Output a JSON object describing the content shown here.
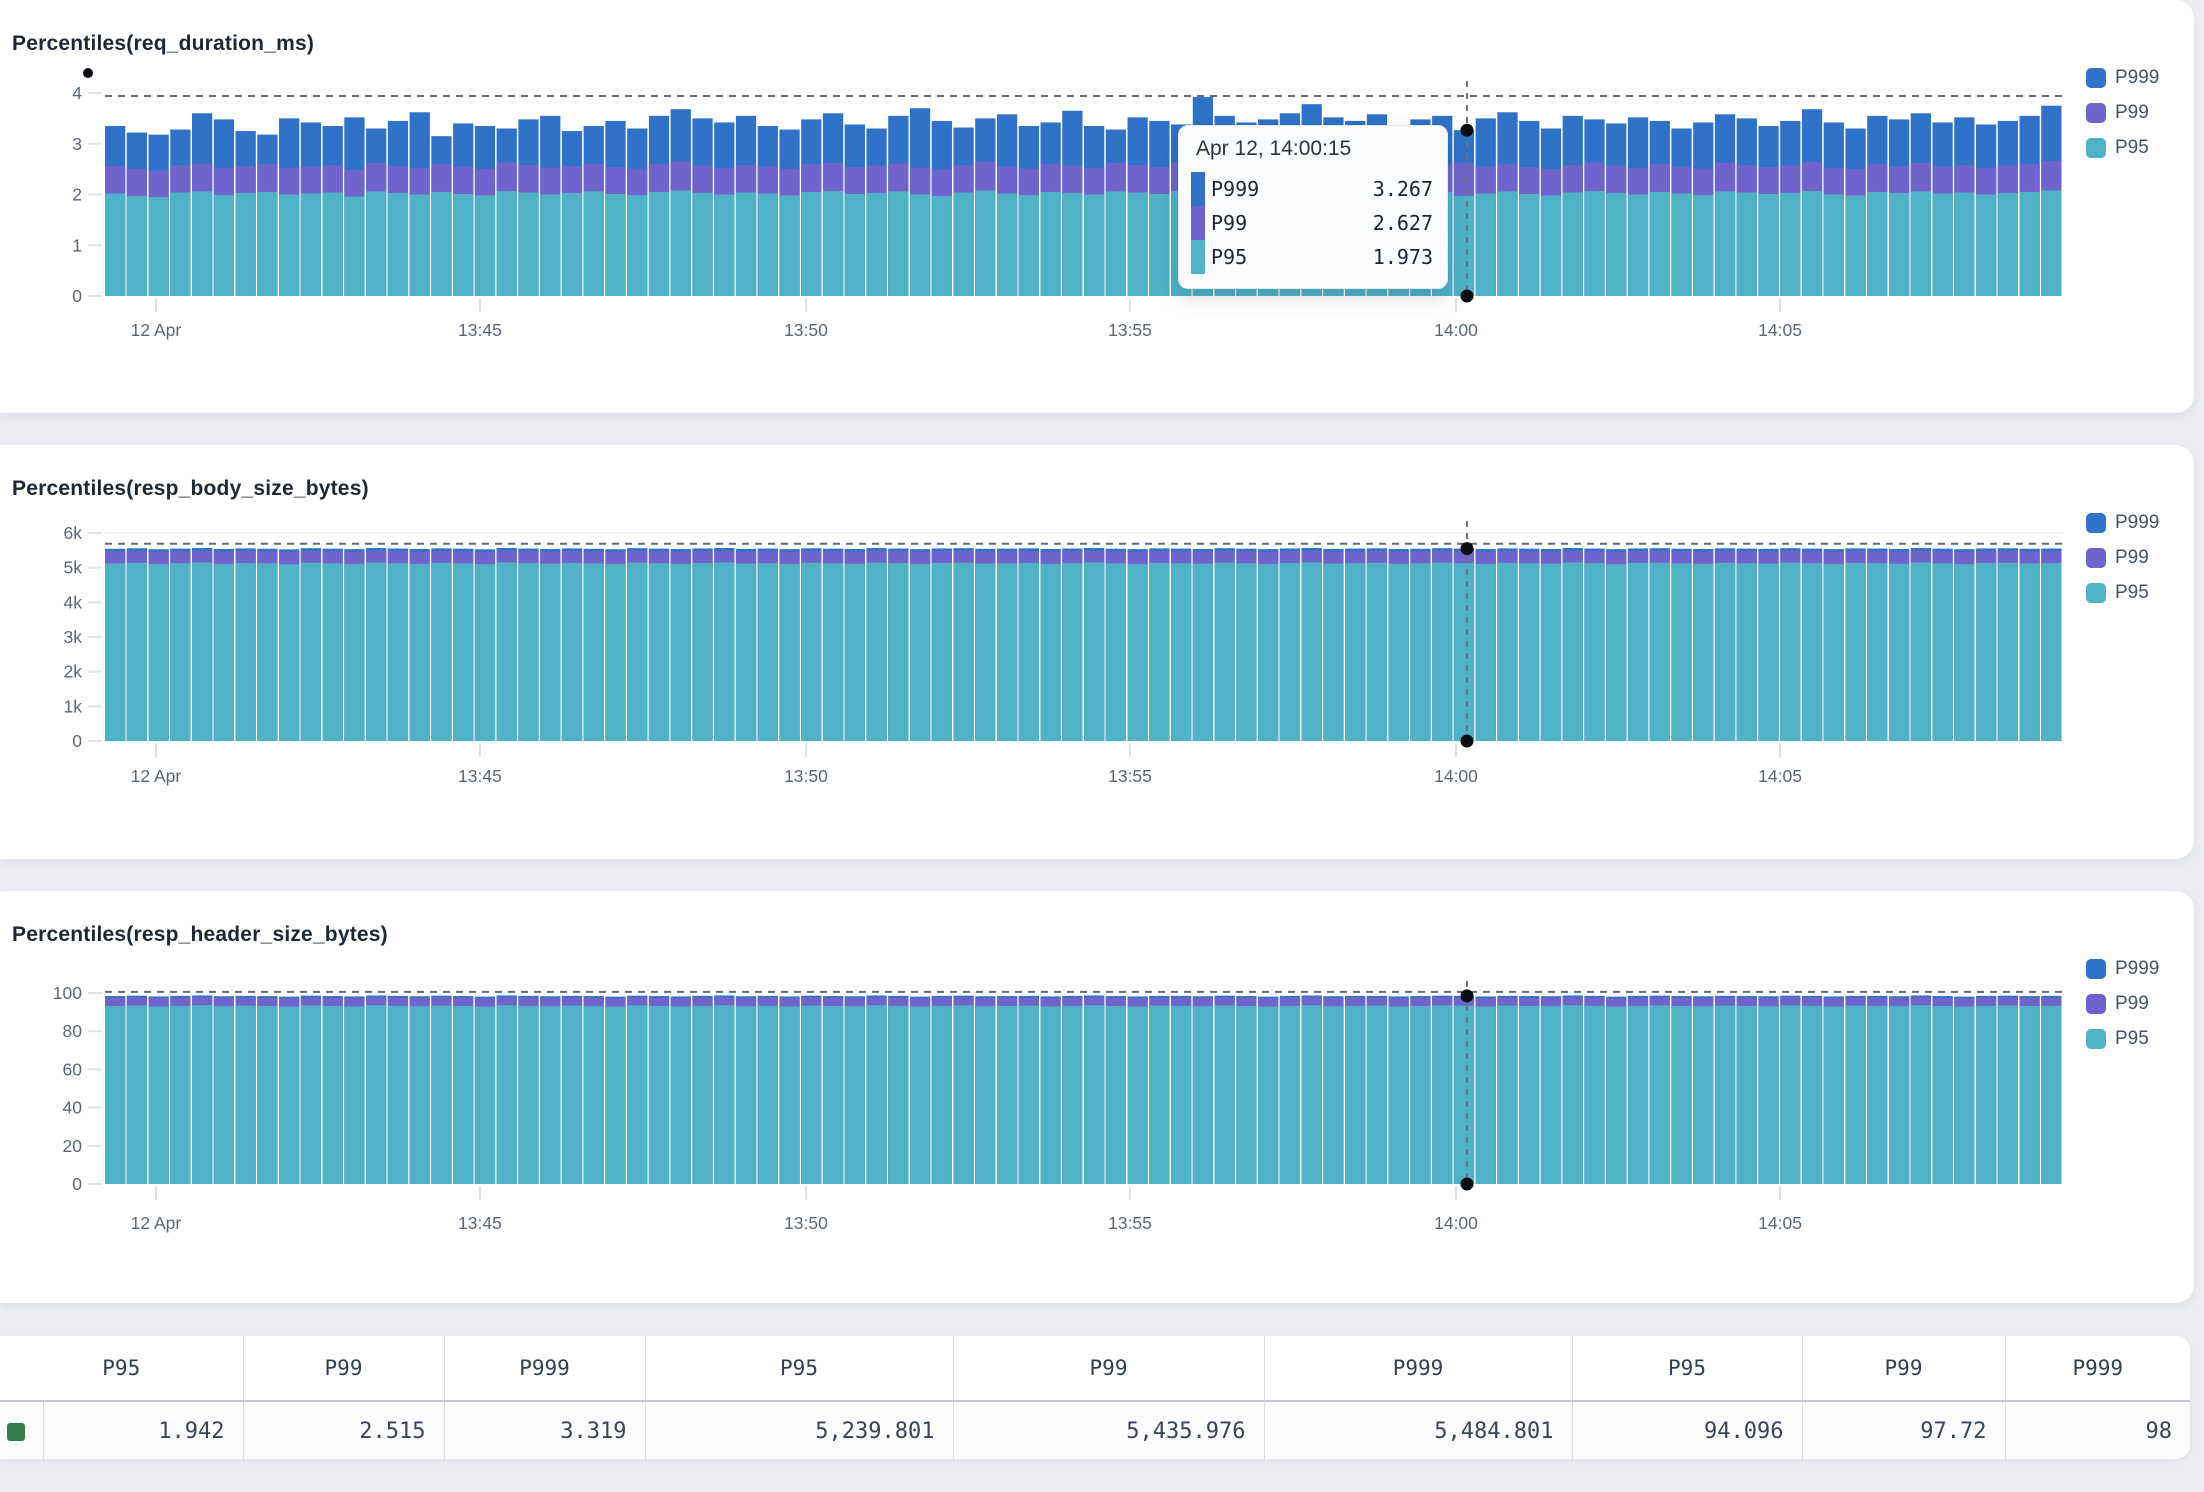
{
  "series_labels": [
    "P999",
    "P99",
    "P95"
  ],
  "colors": {
    "P999": "#2f72c7",
    "P99": "#7064cc",
    "P95": "#4fb2c6",
    "marker": "#0b0f15",
    "max_line": "#5c6b7e"
  },
  "tooltip": {
    "title": "Apr 12, 14:00:15",
    "rows": [
      {
        "label": "P999",
        "value": "3.267"
      },
      {
        "label": "P99",
        "value": "2.627"
      },
      {
        "label": "P95",
        "value": "1.973"
      }
    ]
  },
  "table": {
    "row_marker_color": "#377d4b",
    "columns": [
      {
        "header": "P95",
        "value": "1.942"
      },
      {
        "header": "P99",
        "value": "2.515"
      },
      {
        "header": "P999",
        "value": "3.319"
      },
      {
        "header": "P95",
        "value": "5,239.801"
      },
      {
        "header": "P99",
        "value": "5,435.976"
      },
      {
        "header": "P999",
        "value": "5,484.801"
      },
      {
        "header": "P95",
        "value": "94.096"
      },
      {
        "header": "P99",
        "value": "97.72"
      },
      {
        "header": "P999",
        "value": "98"
      }
    ]
  },
  "chart_data": [
    {
      "type": "bar",
      "title": "Percentiles(req_duration_ms)",
      "ylim": [
        0,
        4
      ],
      "y_ticks": [
        {
          "label": "0",
          "v": 0
        },
        {
          "label": "1",
          "v": 1
        },
        {
          "label": "2",
          "v": 2
        },
        {
          "label": "3",
          "v": 3
        },
        {
          "label": "4",
          "v": 4
        }
      ],
      "x_ticks": [
        {
          "label": "12 Apr",
          "pos": 0.026
        },
        {
          "label": "13:45",
          "pos": 0.1915
        },
        {
          "label": "13:50",
          "pos": 0.358
        },
        {
          "label": "13:55",
          "pos": 0.5235
        },
        {
          "label": "14:00",
          "pos": 0.69
        },
        {
          "label": "14:05",
          "pos": 0.8555
        }
      ],
      "max_line": 3.94,
      "top_gridline": false,
      "crosshair": {
        "pos": 0.6956,
        "bar_index": 62
      },
      "series": [
        {
          "name": "P95",
          "values": [
            2.02,
            1.97,
            1.95,
            2.04,
            2.06,
            1.99,
            2.03,
            2.05,
            2.0,
            2.02,
            2.04,
            1.96,
            2.06,
            2.03,
            2.0,
            2.05,
            2.01,
            1.98,
            2.07,
            2.04,
            2.0,
            2.03,
            2.06,
            2.01,
            1.99,
            2.05,
            2.08,
            2.03,
            2.0,
            2.04,
            2.02,
            1.98,
            2.05,
            2.07,
            2.01,
            2.03,
            2.06,
            2.0,
            1.97,
            2.04,
            2.08,
            2.02,
            1.99,
            2.05,
            2.03,
            2.0,
            2.06,
            2.04,
            2.01,
            2.07,
            2.1,
            2.03,
            2.0,
            2.05,
            2.08,
            2.02,
            1.99,
            2.04,
            2.06,
            2.0,
            2.03,
            2.05,
            1.973,
            2.02,
            2.06,
            2.01,
            1.98,
            2.04,
            2.07,
            2.03,
            2.0,
            2.05,
            2.02,
            1.99,
            2.06,
            2.04,
            2.01,
            2.03,
            2.07,
            2.0,
            1.98,
            2.05,
            2.03,
            2.06,
            2.02,
            2.04,
            2.0,
            2.03,
            2.05,
            2.08
          ]
        },
        {
          "name": "P99",
          "values": [
            2.56,
            2.5,
            2.47,
            2.58,
            2.61,
            2.52,
            2.56,
            2.6,
            2.53,
            2.55,
            2.58,
            2.49,
            2.62,
            2.56,
            2.52,
            2.6,
            2.55,
            2.5,
            2.63,
            2.58,
            2.53,
            2.56,
            2.6,
            2.54,
            2.51,
            2.6,
            2.65,
            2.57,
            2.52,
            2.58,
            2.55,
            2.5,
            2.6,
            2.62,
            2.54,
            2.57,
            2.61,
            2.53,
            2.49,
            2.58,
            2.64,
            2.55,
            2.51,
            2.6,
            2.57,
            2.52,
            2.62,
            2.58,
            2.54,
            2.63,
            2.68,
            2.57,
            2.52,
            2.6,
            2.65,
            2.55,
            2.51,
            2.58,
            2.61,
            2.53,
            2.57,
            2.6,
            2.627,
            2.55,
            2.61,
            2.54,
            2.5,
            2.58,
            2.63,
            2.57,
            2.52,
            2.6,
            2.55,
            2.51,
            2.62,
            2.58,
            2.54,
            2.57,
            2.64,
            2.52,
            2.5,
            2.6,
            2.56,
            2.62,
            2.55,
            2.58,
            2.52,
            2.57,
            2.6,
            2.66
          ]
        },
        {
          "name": "P999",
          "values": [
            3.35,
            3.22,
            3.18,
            3.28,
            3.6,
            3.48,
            3.25,
            3.18,
            3.5,
            3.42,
            3.35,
            3.52,
            3.3,
            3.45,
            3.62,
            3.15,
            3.4,
            3.35,
            3.3,
            3.48,
            3.55,
            3.25,
            3.35,
            3.45,
            3.3,
            3.55,
            3.68,
            3.5,
            3.42,
            3.55,
            3.35,
            3.28,
            3.48,
            3.6,
            3.38,
            3.3,
            3.55,
            3.7,
            3.45,
            3.32,
            3.5,
            3.58,
            3.35,
            3.42,
            3.65,
            3.35,
            3.28,
            3.52,
            3.45,
            3.38,
            3.92,
            3.55,
            3.42,
            3.48,
            3.6,
            3.78,
            3.52,
            3.45,
            3.58,
            3.35,
            3.48,
            3.55,
            3.267,
            3.5,
            3.62,
            3.45,
            3.3,
            3.55,
            3.48,
            3.4,
            3.52,
            3.45,
            3.3,
            3.42,
            3.58,
            3.5,
            3.35,
            3.45,
            3.68,
            3.42,
            3.3,
            3.55,
            3.48,
            3.6,
            3.42,
            3.52,
            3.38,
            3.45,
            3.55,
            3.75
          ]
        }
      ]
    },
    {
      "type": "bar",
      "title": "Percentiles(resp_body_size_bytes)",
      "ylim": [
        0,
        6000
      ],
      "y_ticks": [
        {
          "label": "0",
          "v": 0
        },
        {
          "label": "1k",
          "v": 1000
        },
        {
          "label": "2k",
          "v": 2000
        },
        {
          "label": "3k",
          "v": 3000
        },
        {
          "label": "4k",
          "v": 4000
        },
        {
          "label": "5k",
          "v": 5000
        },
        {
          "label": "6k",
          "v": 6000
        }
      ],
      "x_ticks": [
        {
          "label": "12 Apr",
          "pos": 0.026
        },
        {
          "label": "13:45",
          "pos": 0.1915
        },
        {
          "label": "13:50",
          "pos": 0.358
        },
        {
          "label": "13:55",
          "pos": 0.5235
        },
        {
          "label": "14:00",
          "pos": 0.69
        },
        {
          "label": "14:05",
          "pos": 0.8555
        }
      ],
      "max_line": 5690,
      "top_gridline": true,
      "crosshair": {
        "pos": 0.6956,
        "bar_index": 62
      },
      "series": [
        {
          "name": "P95",
          "values": [
            5120,
            5140,
            5105,
            5130,
            5150,
            5110,
            5135,
            5122,
            5098,
            5142,
            5125,
            5108,
            5148,
            5132,
            5112,
            5140,
            5124,
            5100,
            5152,
            5134,
            5115,
            5138,
            5120,
            5104,
            5146,
            5128,
            5110,
            5136,
            5150,
            5116,
            5130,
            5106,
            5142,
            5124,
            5112,
            5148,
            5134,
            5102,
            5138,
            5144,
            5118,
            5126,
            5140,
            5108,
            5132,
            5150,
            5122,
            5104,
            5138,
            5130,
            5114,
            5144,
            5128,
            5102,
            5136,
            5152,
            5116,
            5132,
            5142,
            5110,
            5124,
            5146,
            5130,
            5106,
            5140,
            5126,
            5114,
            5150,
            5134,
            5100,
            5138,
            5144,
            5122,
            5112,
            5142,
            5128,
            5118,
            5146,
            5132,
            5104,
            5140,
            5134,
            5112,
            5150,
            5126,
            5100,
            5138,
            5142,
            5124,
            5132
          ]
        },
        {
          "name": "P99",
          "values": [
            5470,
            5482,
            5462,
            5476,
            5490,
            5466,
            5480,
            5472,
            5458,
            5485,
            5470,
            5462,
            5488,
            5476,
            5464,
            5482,
            5472,
            5458,
            5490,
            5476,
            5464,
            5480,
            5470,
            5460,
            5486,
            5473,
            5463,
            5478,
            5490,
            5466,
            5476,
            5461,
            5482,
            5472,
            5464,
            5488,
            5476,
            5460,
            5478,
            5485,
            5466,
            5473,
            5482,
            5463,
            5476,
            5488,
            5470,
            5461,
            5480,
            5476,
            5464,
            5485,
            5472,
            5460,
            5478,
            5490,
            5466,
            5476,
            5482,
            5463,
            5470,
            5486,
            5476,
            5461,
            5480,
            5472,
            5464,
            5488,
            5476,
            5460,
            5478,
            5485,
            5470,
            5464,
            5482,
            5473,
            5466,
            5486,
            5476,
            5461,
            5480,
            5476,
            5464,
            5488,
            5472,
            5460,
            5478,
            5484,
            5470,
            5476
          ]
        },
        {
          "name": "P999",
          "values": [
            5545,
            5560,
            5532,
            5550,
            5568,
            5538,
            5555,
            5546,
            5528,
            5562,
            5548,
            5534,
            5566,
            5552,
            5538,
            5558,
            5548,
            5530,
            5568,
            5552,
            5540,
            5556,
            5544,
            5532,
            5562,
            5549,
            5538,
            5554,
            5568,
            5542,
            5552,
            5535,
            5558,
            5548,
            5540,
            5566,
            5552,
            5534,
            5554,
            5562,
            5544,
            5549,
            5558,
            5538,
            5552,
            5566,
            5546,
            5535,
            5556,
            5550,
            5540,
            5562,
            5548,
            5534,
            5554,
            5568,
            5542,
            5552,
            5558,
            5538,
            5546,
            5562,
            5550,
            5536,
            5556,
            5548,
            5540,
            5566,
            5552,
            5534,
            5554,
            5562,
            5546,
            5540,
            5558,
            5549,
            5544,
            5562,
            5550,
            5536,
            5556,
            5552,
            5540,
            5566,
            5548,
            5534,
            5554,
            5560,
            5546,
            5552
          ]
        }
      ]
    },
    {
      "type": "bar",
      "title": "Percentiles(resp_header_size_bytes)",
      "ylim": [
        0,
        100
      ],
      "y_ticks": [
        {
          "label": "0",
          "v": 0
        },
        {
          "label": "20",
          "v": 20
        },
        {
          "label": "40",
          "v": 40
        },
        {
          "label": "60",
          "v": 60
        },
        {
          "label": "80",
          "v": 80
        },
        {
          "label": "100",
          "v": 100
        }
      ],
      "x_ticks": [
        {
          "label": "12 Apr",
          "pos": 0.026
        },
        {
          "label": "13:45",
          "pos": 0.1915
        },
        {
          "label": "13:50",
          "pos": 0.358
        },
        {
          "label": "13:55",
          "pos": 0.5235
        },
        {
          "label": "14:00",
          "pos": 0.69
        },
        {
          "label": "14:05",
          "pos": 0.8555
        }
      ],
      "max_line": 100.6,
      "top_gridline": false,
      "crosshair": {
        "pos": 0.6956,
        "bar_index": 62
      },
      "series": [
        {
          "name": "P95",
          "values": [
            93.2,
            93.5,
            93.0,
            93.3,
            93.6,
            93.1,
            93.4,
            93.2,
            92.9,
            93.5,
            93.2,
            93.0,
            93.6,
            93.3,
            93.1,
            93.4,
            93.2,
            92.9,
            93.6,
            93.3,
            93.1,
            93.4,
            93.1,
            92.9,
            93.5,
            93.2,
            93.0,
            93.3,
            93.6,
            93.1,
            93.3,
            93.0,
            93.4,
            93.2,
            93.1,
            93.6,
            93.3,
            92.9,
            93.3,
            93.5,
            93.1,
            93.2,
            93.4,
            93.0,
            93.3,
            93.6,
            93.2,
            93.0,
            93.4,
            93.3,
            93.1,
            93.5,
            93.2,
            92.9,
            93.3,
            93.6,
            93.1,
            93.3,
            93.4,
            93.0,
            93.2,
            93.5,
            93.3,
            93.0,
            93.4,
            93.2,
            93.1,
            93.6,
            93.3,
            92.9,
            93.3,
            93.5,
            93.2,
            93.1,
            93.4,
            93.2,
            93.1,
            93.5,
            93.3,
            93.0,
            93.4,
            93.3,
            93.1,
            93.6,
            93.2,
            92.9,
            93.3,
            93.5,
            93.2,
            93.3
          ]
        },
        {
          "name": "P99",
          "values": [
            97.5,
            97.7,
            97.3,
            97.6,
            97.8,
            97.4,
            97.6,
            97.5,
            97.2,
            97.7,
            97.5,
            97.3,
            97.8,
            97.6,
            97.4,
            97.7,
            97.5,
            97.2,
            97.8,
            97.6,
            97.4,
            97.6,
            97.5,
            97.2,
            97.7,
            97.5,
            97.3,
            97.6,
            97.8,
            97.4,
            97.6,
            97.3,
            97.7,
            97.5,
            97.4,
            97.8,
            97.6,
            97.2,
            97.6,
            97.7,
            97.4,
            97.5,
            97.6,
            97.3,
            97.6,
            97.8,
            97.5,
            97.3,
            97.6,
            97.6,
            97.4,
            97.7,
            97.5,
            97.2,
            97.6,
            97.8,
            97.4,
            97.6,
            97.6,
            97.3,
            97.5,
            97.7,
            97.6,
            97.3,
            97.6,
            97.5,
            97.4,
            97.8,
            97.6,
            97.2,
            97.6,
            97.7,
            97.5,
            97.4,
            97.6,
            97.5,
            97.4,
            97.7,
            97.6,
            97.3,
            97.6,
            97.6,
            97.4,
            97.8,
            97.5,
            97.2,
            97.6,
            97.7,
            97.5,
            97.6
          ]
        },
        {
          "name": "P999",
          "values": [
            98.4,
            98.6,
            98.2,
            98.5,
            98.7,
            98.3,
            98.5,
            98.4,
            98.1,
            98.6,
            98.4,
            98.2,
            98.7,
            98.5,
            98.3,
            98.6,
            98.4,
            98.1,
            98.7,
            98.5,
            98.3,
            98.5,
            98.4,
            98.1,
            98.6,
            98.4,
            98.2,
            98.5,
            98.7,
            98.3,
            98.5,
            98.2,
            98.6,
            98.4,
            98.3,
            98.7,
            98.5,
            98.1,
            98.5,
            98.6,
            98.3,
            98.4,
            98.5,
            98.2,
            98.5,
            98.7,
            98.4,
            98.2,
            98.5,
            98.5,
            98.3,
            98.6,
            98.4,
            98.1,
            98.5,
            98.7,
            98.3,
            98.5,
            98.5,
            98.2,
            98.4,
            98.6,
            98.5,
            98.2,
            98.5,
            98.4,
            98.3,
            98.7,
            98.5,
            98.1,
            98.5,
            98.6,
            98.4,
            98.3,
            98.5,
            98.4,
            98.3,
            98.6,
            98.5,
            98.2,
            98.5,
            98.5,
            98.3,
            98.7,
            98.4,
            98.1,
            98.5,
            98.6,
            98.4,
            98.5
          ]
        }
      ]
    }
  ]
}
